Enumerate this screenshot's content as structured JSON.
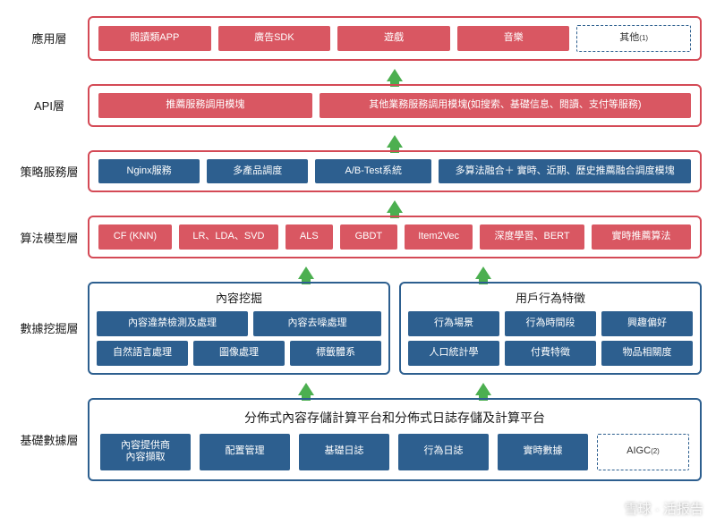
{
  "colors": {
    "red_border": "#d44a56",
    "red_fill": "#d95762",
    "blue_border": "#2d5f8f",
    "blue_fill": "#2d5f8f",
    "arrow": "#4caf50",
    "text_dark": "#1a1a1a"
  },
  "layers": [
    {
      "id": "app",
      "label": "應用層",
      "border_color": "#d44a56",
      "blocks": [
        {
          "text": "閱讀類APP",
          "bg": "#d95762",
          "flex": 1
        },
        {
          "text": "廣告SDK",
          "bg": "#d95762",
          "flex": 1
        },
        {
          "text": "遊戲",
          "bg": "#d95762",
          "flex": 1
        },
        {
          "text": "音樂",
          "bg": "#d95762",
          "flex": 1
        },
        {
          "text": "其他",
          "sup": "(1)",
          "dashed": true,
          "flex": 1
        }
      ]
    },
    {
      "id": "api",
      "label": "API層",
      "border_color": "#d44a56",
      "blocks": [
        {
          "text": "推薦服務調用模塊",
          "bg": "#d95762",
          "flex": 0.9
        },
        {
          "text": "其他業務服務調用模塊(如搜索、基礎信息、閱讀、支付等服務)",
          "bg": "#d95762",
          "flex": 1.6
        }
      ]
    },
    {
      "id": "policy",
      "label": "策略服務層",
      "border_color": "#d44a56",
      "blocks": [
        {
          "text": "Nginx服務",
          "bg": "#2d5f8f",
          "flex": 0.6
        },
        {
          "text": "多產品調度",
          "bg": "#2d5f8f",
          "flex": 0.6
        },
        {
          "text": "A/B-Test系統",
          "bg": "#2d5f8f",
          "flex": 0.7
        },
        {
          "text": "多算法融合＋ 實時、近期、歷史推薦融合調度模塊",
          "bg": "#2d5f8f",
          "flex": 1.6
        }
      ]
    },
    {
      "id": "algo",
      "label": "算法模型層",
      "border_color": "#d44a56",
      "blocks": [
        {
          "text": "CF (KNN)",
          "bg": "#d95762",
          "flex": 0.6
        },
        {
          "text": "LR、LDA、SVD",
          "bg": "#d95762",
          "flex": 0.85
        },
        {
          "text": "ALS",
          "bg": "#d95762",
          "flex": 0.35
        },
        {
          "text": "GBDT",
          "bg": "#d95762",
          "flex": 0.45
        },
        {
          "text": "Item2Vec",
          "bg": "#d95762",
          "flex": 0.55
        },
        {
          "text": "深度學習、BERT",
          "bg": "#d95762",
          "flex": 0.9
        },
        {
          "text": "實時推薦算法",
          "bg": "#d95762",
          "flex": 0.85
        }
      ]
    }
  ],
  "mining": {
    "label": "數據挖掘層",
    "border_color": "#2d5f8f",
    "left": {
      "title": "內容挖掘",
      "rows": [
        [
          {
            "text": "內容違禁檢測及處理",
            "bg": "#2d5f8f",
            "flex": 1.2
          },
          {
            "text": "內容去噪處理",
            "bg": "#2d5f8f",
            "flex": 1
          }
        ],
        [
          {
            "text": "自然語言處理",
            "bg": "#2d5f8f"
          },
          {
            "text": "圖像處理",
            "bg": "#2d5f8f"
          },
          {
            "text": "標籤體系",
            "bg": "#2d5f8f"
          }
        ]
      ]
    },
    "right": {
      "title": "用戶行為特徵",
      "rows": [
        [
          {
            "text": "行為場景",
            "bg": "#2d5f8f"
          },
          {
            "text": "行為時間段",
            "bg": "#2d5f8f"
          },
          {
            "text": "興趣偏好",
            "bg": "#2d5f8f"
          }
        ],
        [
          {
            "text": "人口統計學",
            "bg": "#2d5f8f"
          },
          {
            "text": "付費特徵",
            "bg": "#2d5f8f"
          },
          {
            "text": "物品相關度",
            "bg": "#2d5f8f"
          }
        ]
      ]
    }
  },
  "base": {
    "label": "基礎數據層",
    "border_color": "#2d5f8f",
    "title": "分佈式內容存儲計算平台和分佈式日誌存儲及計算平台",
    "blocks": [
      {
        "text": "內容提供商\n內容擷取",
        "bg": "#2d5f8f"
      },
      {
        "text": "配置管理",
        "bg": "#2d5f8f"
      },
      {
        "text": "基礎日誌",
        "bg": "#2d5f8f"
      },
      {
        "text": "行為日誌",
        "bg": "#2d5f8f"
      },
      {
        "text": "實時數據",
        "bg": "#2d5f8f"
      },
      {
        "text": "AIGC",
        "sup": "(2)",
        "dashed": true
      }
    ]
  },
  "watermark": "雪球 · 活报告"
}
